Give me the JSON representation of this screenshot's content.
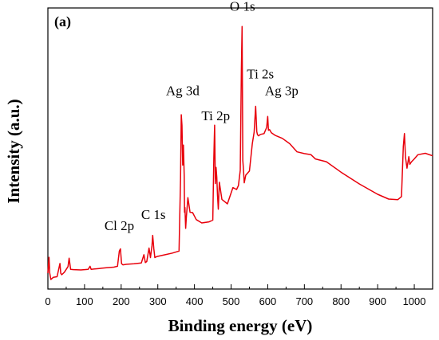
{
  "chart_data": {
    "type": "line",
    "panel_label": "(a)",
    "title": "",
    "xlabel": "Binding energy (eV)",
    "ylabel": "Intensity (a.u.)",
    "xlim": [
      0,
      1050
    ],
    "ylim": [
      0,
      100
    ],
    "x_ticks": [
      0,
      100,
      200,
      300,
      400,
      500,
      600,
      700,
      800,
      900,
      1000
    ],
    "y_ticks_labeled": false,
    "grid": false,
    "line_color": "#e8000b",
    "series": [
      {
        "x": [
          0,
          3,
          5,
          8,
          15,
          25,
          33,
          35,
          38,
          45,
          55,
          58,
          62,
          70,
          90,
          110,
          115,
          118,
          125,
          140,
          160,
          180,
          190,
          195,
          198,
          201,
          205,
          215,
          235,
          255,
          262,
          266,
          270,
          276,
          280,
          284,
          286,
          289,
          292,
          298,
          320,
          340,
          358,
          362,
          364,
          366,
          368,
          370,
          372,
          373,
          374,
          376,
          378,
          382,
          388,
          395,
          405,
          420,
          440,
          450,
          453,
          455,
          457,
          459,
          461,
          463,
          465,
          468,
          475,
          490,
          505,
          515,
          520,
          525,
          528,
          530,
          532,
          534,
          536,
          540,
          550,
          558,
          563,
          567,
          570,
          572,
          575,
          580,
          590,
          597,
          600,
          602,
          605,
          610,
          620,
          640,
          660,
          680,
          700,
          718,
          730,
          760,
          800,
          850,
          900,
          930,
          955,
          965,
          970,
          973,
          976,
          980,
          985,
          988,
          992,
          1000,
          1010,
          1030,
          1050
        ],
        "y": [
          5.7,
          11.3,
          5.7,
          3.4,
          4.2,
          4.4,
          9.1,
          5.6,
          5.1,
          6.0,
          8.0,
          11.0,
          7.0,
          6.9,
          6.8,
          7.0,
          8.1,
          7.0,
          7.1,
          7.3,
          7.6,
          7.8,
          8.1,
          13.5,
          14.3,
          9.0,
          8.6,
          8.8,
          9.0,
          9.3,
          12.2,
          9.4,
          9.8,
          14.6,
          11.2,
          15.4,
          19.1,
          14.4,
          11.2,
          11.6,
          12.2,
          12.8,
          13.5,
          39.3,
          62.0,
          58.2,
          44.1,
          51.2,
          40.2,
          27.3,
          29.0,
          21.6,
          25.7,
          32.5,
          27.3,
          27.2,
          24.7,
          23.5,
          23.9,
          24.5,
          46.7,
          58.3,
          37.5,
          43.3,
          39.8,
          33.4,
          28.4,
          38.0,
          31.9,
          30.3,
          36.1,
          35.4,
          36.8,
          42.2,
          77.9,
          93.4,
          45.8,
          42.2,
          37.8,
          40.5,
          42.0,
          51.7,
          55.8,
          65.0,
          56.0,
          54.9,
          54.5,
          55.0,
          55.3,
          57.5,
          61.4,
          56.5,
          56.7,
          55.6,
          54.7,
          53.6,
          51.7,
          48.8,
          48.2,
          47.8,
          46.3,
          45.3,
          41.6,
          37.4,
          33.7,
          32.0,
          31.8,
          32.9,
          50.8,
          55.3,
          46.9,
          43.0,
          47.1,
          44.4,
          45.2,
          46.3,
          47.8,
          48.3,
          47.4
        ]
      }
    ],
    "annotations": [
      {
        "text": "Cl 2p",
        "x": 195,
        "y": 21
      },
      {
        "text": "C 1s",
        "x": 288,
        "y": 25
      },
      {
        "text": "Ag 3d",
        "x": 368,
        "y": 69
      },
      {
        "text": "Ti 2p",
        "x": 458,
        "y": 60
      },
      {
        "text": "O 1s",
        "x": 531,
        "y": 99
      },
      {
        "text": "Ti 2s",
        "x": 580,
        "y": 75
      },
      {
        "text": "Ag 3p",
        "x": 638,
        "y": 69
      }
    ]
  }
}
